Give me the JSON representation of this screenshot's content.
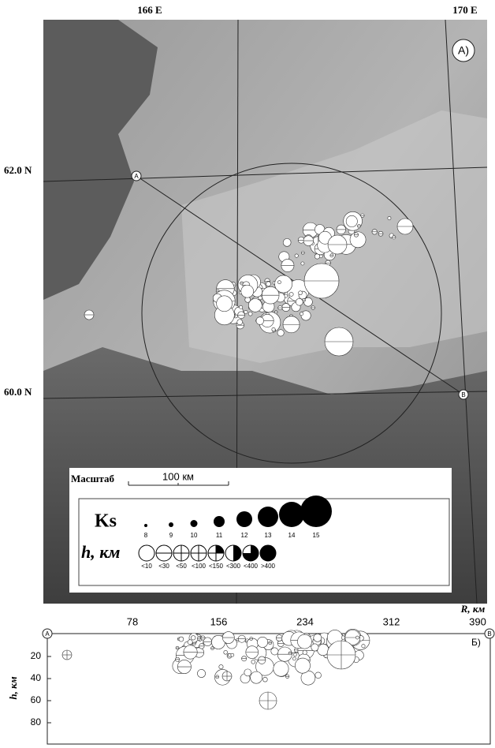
{
  "map": {
    "panel_label": "A)",
    "longitudes": [
      "166 E",
      "170 E"
    ],
    "latitudes": [
      "62.0 N",
      "60.0 N"
    ],
    "points": [
      "A",
      "B"
    ],
    "scale": {
      "title": "Масштаб",
      "length": "100 км"
    },
    "legend": {
      "ks_title": "Ks",
      "ks_classes": [
        "8",
        "9",
        "10",
        "11",
        "12",
        "13",
        "14",
        "15"
      ],
      "depth_title": "h, км",
      "depth_classes": [
        "<10",
        "<30",
        "<50",
        "<100",
        "<150",
        "<300",
        "<400",
        ">400"
      ]
    }
  },
  "profile": {
    "panel_label": "Б)",
    "x_title": "R, км",
    "x_ticks": [
      "78",
      "156",
      "234",
      "312",
      "390"
    ],
    "y_title": "h, км",
    "y_ticks": [
      "20",
      "40",
      "60",
      "80"
    ],
    "ends": [
      "A",
      "B"
    ]
  }
}
